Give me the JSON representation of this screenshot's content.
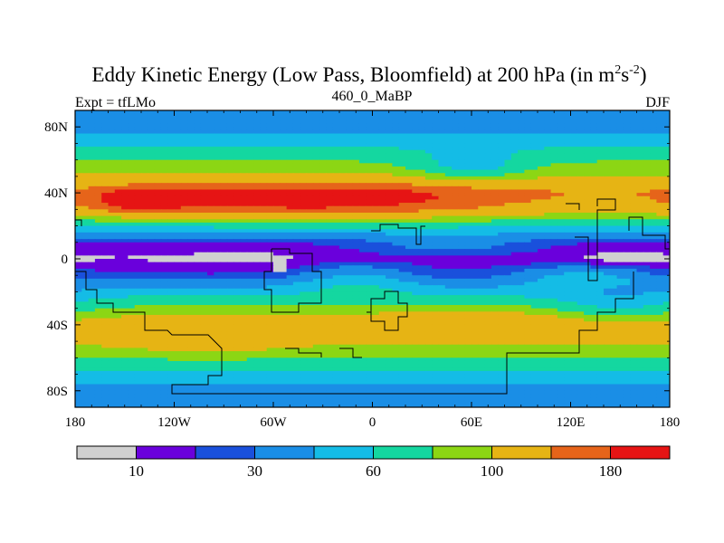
{
  "chart_data": {
    "type": "heatmap",
    "title": "Eddy Kinetic Energy (Low Pass, Bloomfield) at 200 hPa (in m",
    "title_unit_sup1": "2",
    "title_unit_s": "s",
    "title_unit_sup2": "-2",
    "title_close": ")",
    "subtitle_left": "Expt = tfLMo",
    "subtitle_center": "460_0_MaBP",
    "subtitle_right": "DJF",
    "x_range": [
      -180,
      180
    ],
    "y_range": [
      -90,
      90
    ],
    "x_ticks": [
      {
        "value": -180,
        "label": "180"
      },
      {
        "value": -120,
        "label": "120W"
      },
      {
        "value": -60,
        "label": "60W"
      },
      {
        "value": 0,
        "label": "0"
      },
      {
        "value": 60,
        "label": "60E"
      },
      {
        "value": 120,
        "label": "120E"
      },
      {
        "value": 180,
        "label": "180"
      }
    ],
    "y_ticks": [
      {
        "value": 80,
        "label": "80N"
      },
      {
        "value": 40,
        "label": "40N"
      },
      {
        "value": 0,
        "label": "0"
      },
      {
        "value": -40,
        "label": "40S"
      },
      {
        "value": -80,
        "label": "80S"
      }
    ],
    "colorbar": {
      "colors": [
        "#d0d0d0",
        "#6a00dc",
        "#1a50dc",
        "#1a8ee6",
        "#14bce6",
        "#14d7a0",
        "#8cd614",
        "#e6b414",
        "#e6641a",
        "#e61414"
      ],
      "labels": [
        {
          "index": 1,
          "text": "10"
        },
        {
          "index": 3,
          "text": "30"
        },
        {
          "index": 5,
          "text": "60"
        },
        {
          "index": 7,
          "text": "100"
        },
        {
          "index": 9,
          "text": "180"
        }
      ]
    },
    "field": {
      "levels": [
        5,
        10,
        20,
        30,
        45,
        60,
        80,
        100,
        140,
        180
      ],
      "lat_profile": [
        {
          "lat": 90,
          "v": 30
        },
        {
          "lat": 80,
          "v": 40
        },
        {
          "lat": 70,
          "v": 55
        },
        {
          "lat": 60,
          "v": 78
        },
        {
          "lat": 50,
          "v": 100
        },
        {
          "lat": 40,
          "v": 130
        },
        {
          "lat": 30,
          "v": 105
        },
        {
          "lat": 20,
          "v": 60
        },
        {
          "lat": 10,
          "v": 22
        },
        {
          "lat": 0,
          "v": 12
        },
        {
          "lat": -10,
          "v": 22
        },
        {
          "lat": -20,
          "v": 52
        },
        {
          "lat": -30,
          "v": 85
        },
        {
          "lat": -40,
          "v": 118
        },
        {
          "lat": -50,
          "v": 105
        },
        {
          "lat": -60,
          "v": 78
        },
        {
          "lat": -70,
          "v": 55
        },
        {
          "lat": -80,
          "v": 40
        },
        {
          "lat": -90,
          "v": 32
        }
      ],
      "anomalies": [
        {
          "lon": -40,
          "lat": 36,
          "dlon": 80,
          "dlat": 7,
          "amp": 95
        },
        {
          "lon": -140,
          "lat": 35,
          "dlon": 20,
          "dlat": 5,
          "amp": 70
        },
        {
          "lon": 60,
          "lat": 55,
          "dlon": 25,
          "dlat": 7,
          "amp": -35
        },
        {
          "lon": -80,
          "lat": 2,
          "dlon": 50,
          "dlat": 6,
          "amp": -6
        },
        {
          "lon": 150,
          "lat": 0,
          "dlon": 28,
          "dlat": 7,
          "amp": -8
        },
        {
          "lon": -10,
          "lat": -12,
          "dlon": 25,
          "dlat": 7,
          "amp": 25
        },
        {
          "lon": 45,
          "lat": 8,
          "dlon": 35,
          "dlat": 5,
          "amp": 15
        },
        {
          "lon": 130,
          "lat": -10,
          "dlon": 30,
          "dlat": 5,
          "amp": 30
        },
        {
          "lon": -100,
          "lat": -48,
          "dlon": 35,
          "dlat": 8,
          "amp": 20
        },
        {
          "lon": 60,
          "lat": -38,
          "dlon": 45,
          "dlat": 6,
          "amp": 15
        },
        {
          "lon": 150,
          "lat": -30,
          "dlon": 30,
          "dlat": 8,
          "amp": -25
        }
      ],
      "low_spots": [
        {
          "lon": -57,
          "lat": -5,
          "dlon": 5,
          "dlat": 3
        },
        {
          "lon": 150,
          "lat": 0,
          "dlon": 9,
          "dlat": 3
        }
      ]
    }
  }
}
